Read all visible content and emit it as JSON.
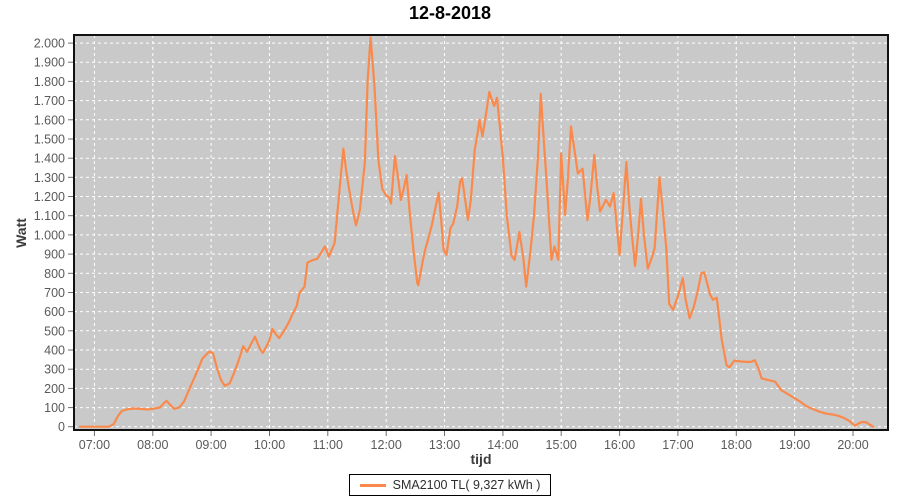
{
  "chart": {
    "background": "#ffffff",
    "accent_color": "#fa8a4c"
  },
  "legend": {
    "label": "SMA2100 TL( 9,327 kWh )"
  },
  "chart_data": {
    "type": "line",
    "title": "12-8-2018",
    "xlabel": "tijd",
    "ylabel": "Watt",
    "legend_position": "bottom",
    "grid": true,
    "plot_bg": "#c9c9c9",
    "grid_color": "#ffffff",
    "tick_label_color": "#5a5a5a",
    "plot_border_color": "#111111",
    "x_tick_labels": [
      "07:00",
      "08:00",
      "09:00",
      "10:00",
      "11:00",
      "12:00",
      "13:00",
      "14:00",
      "15:00",
      "16:00",
      "17:00",
      "18:00",
      "19:00",
      "20:00"
    ],
    "y_tick_labels": [
      "0",
      "100",
      "200",
      "300",
      "400",
      "500",
      "600",
      "700",
      "800",
      "900",
      "1.000",
      "1.100",
      "1.200",
      "1.300",
      "1.400",
      "1.500",
      "1.600",
      "1.700",
      "1.800",
      "1.900",
      "2.000"
    ],
    "y_tick_step": 100,
    "ylim": [
      -17,
      2042
    ],
    "x_domain_minutes": [
      399,
      1236
    ],
    "series": [
      {
        "name": "SMA2100 TL( 9,327 kWh )",
        "color": "#fa8a4c",
        "points": [
          [
            "06:45",
            0
          ],
          [
            "06:52",
            0
          ],
          [
            "07:00",
            0
          ],
          [
            "07:08",
            0
          ],
          [
            "07:15",
            0
          ],
          [
            "07:20",
            15
          ],
          [
            "07:24",
            55
          ],
          [
            "07:28",
            82
          ],
          [
            "07:33",
            90
          ],
          [
            "07:40",
            95
          ],
          [
            "07:48",
            93
          ],
          [
            "07:55",
            90
          ],
          [
            "08:02",
            95
          ],
          [
            "08:07",
            100
          ],
          [
            "08:14",
            135
          ],
          [
            "08:19",
            108
          ],
          [
            "08:22",
            93
          ],
          [
            "08:27",
            100
          ],
          [
            "08:32",
            130
          ],
          [
            "08:37",
            190
          ],
          [
            "08:44",
            270
          ],
          [
            "08:51",
            355
          ],
          [
            "08:58",
            392
          ],
          [
            "09:02",
            382
          ],
          [
            "09:06",
            305
          ],
          [
            "09:10",
            245
          ],
          [
            "09:14",
            213
          ],
          [
            "09:19",
            226
          ],
          [
            "09:24",
            286
          ],
          [
            "09:29",
            355
          ],
          [
            "09:33",
            420
          ],
          [
            "09:37",
            390
          ],
          [
            "09:42",
            440
          ],
          [
            "09:45",
            470
          ],
          [
            "09:50",
            408
          ],
          [
            "09:53",
            385
          ],
          [
            "09:57",
            420
          ],
          [
            "10:00",
            452
          ],
          [
            "10:03",
            510
          ],
          [
            "10:07",
            480
          ],
          [
            "10:10",
            462
          ],
          [
            "10:15",
            500
          ],
          [
            "10:20",
            545
          ],
          [
            "10:24",
            590
          ],
          [
            "10:28",
            630
          ],
          [
            "10:31",
            700
          ],
          [
            "10:36",
            730
          ],
          [
            "10:39",
            855
          ],
          [
            "10:44",
            868
          ],
          [
            "10:49",
            875
          ],
          [
            "10:53",
            905
          ],
          [
            "10:57",
            940
          ],
          [
            "11:01",
            887
          ],
          [
            "11:07",
            957
          ],
          [
            "11:12",
            1235
          ],
          [
            "11:16",
            1450
          ],
          [
            "11:19",
            1330
          ],
          [
            "11:22",
            1235
          ],
          [
            "11:26",
            1120
          ],
          [
            "11:29",
            1050
          ],
          [
            "11:33",
            1131
          ],
          [
            "11:38",
            1374
          ],
          [
            "11:41",
            1810
          ],
          [
            "11:44",
            2030
          ],
          [
            "11:48",
            1773
          ],
          [
            "11:52",
            1390
          ],
          [
            "11:56",
            1240
          ],
          [
            "12:00",
            1205
          ],
          [
            "12:03",
            1195
          ],
          [
            "12:05",
            1163
          ],
          [
            "12:09",
            1411
          ],
          [
            "12:13",
            1269
          ],
          [
            "12:15",
            1182
          ],
          [
            "12:18",
            1240
          ],
          [
            "12:21",
            1313
          ],
          [
            "12:24",
            1130
          ],
          [
            "12:28",
            922
          ],
          [
            "12:32",
            749
          ],
          [
            "12:33",
            738
          ],
          [
            "12:37",
            850
          ],
          [
            "12:40",
            922
          ],
          [
            "12:43",
            974
          ],
          [
            "12:47",
            1052
          ],
          [
            "12:51",
            1150
          ],
          [
            "12:54",
            1220
          ],
          [
            "12:57",
            1052
          ],
          [
            "12:59",
            922
          ],
          [
            "13:02",
            896
          ],
          [
            "13:06",
            1035
          ],
          [
            "13:09",
            1060
          ],
          [
            "13:13",
            1150
          ],
          [
            "13:16",
            1278
          ],
          [
            "13:18",
            1295
          ],
          [
            "13:21",
            1191
          ],
          [
            "13:24",
            1078
          ],
          [
            "13:27",
            1180
          ],
          [
            "13:31",
            1443
          ],
          [
            "13:34",
            1530
          ],
          [
            "13:36",
            1600
          ],
          [
            "13:39",
            1513
          ],
          [
            "13:43",
            1640
          ],
          [
            "13:46",
            1745
          ],
          [
            "13:49",
            1700
          ],
          [
            "13:51",
            1672
          ],
          [
            "13:54",
            1715
          ],
          [
            "13:57",
            1560
          ],
          [
            "14:00",
            1400
          ],
          [
            "14:04",
            1100
          ],
          [
            "14:09",
            890
          ],
          [
            "14:12",
            870
          ],
          [
            "14:17",
            1015
          ],
          [
            "14:21",
            880
          ],
          [
            "14:24",
            730
          ],
          [
            "14:28",
            900
          ],
          [
            "14:32",
            1100
          ],
          [
            "14:36",
            1400
          ],
          [
            "14:39",
            1735
          ],
          [
            "14:42",
            1500
          ],
          [
            "14:46",
            1200
          ],
          [
            "14:50",
            870
          ],
          [
            "14:53",
            940
          ],
          [
            "14:57",
            870
          ],
          [
            "15:00",
            1425
          ],
          [
            "15:04",
            1105
          ],
          [
            "15:07",
            1300
          ],
          [
            "15:10",
            1565
          ],
          [
            "15:14",
            1430
          ],
          [
            "15:17",
            1320
          ],
          [
            "15:22",
            1345
          ],
          [
            "15:27",
            1077
          ],
          [
            "15:30",
            1200
          ],
          [
            "15:34",
            1417
          ],
          [
            "15:37",
            1250
          ],
          [
            "15:40",
            1122
          ],
          [
            "15:46",
            1183
          ],
          [
            "15:50",
            1148
          ],
          [
            "15:54",
            1218
          ],
          [
            "15:57",
            1050
          ],
          [
            "16:00",
            895
          ],
          [
            "16:03",
            1100
          ],
          [
            "16:07",
            1380
          ],
          [
            "16:10",
            1150
          ],
          [
            "16:13",
            985
          ],
          [
            "16:16",
            838
          ],
          [
            "16:19",
            1000
          ],
          [
            "16:22",
            1188
          ],
          [
            "16:25",
            1000
          ],
          [
            "16:29",
            824
          ],
          [
            "16:33",
            880
          ],
          [
            "16:36",
            930
          ],
          [
            "16:41",
            1300
          ],
          [
            "16:44",
            1150
          ],
          [
            "16:48",
            930
          ],
          [
            "16:51",
            640
          ],
          [
            "16:55",
            610
          ],
          [
            "17:00",
            680
          ],
          [
            "17:05",
            775
          ],
          [
            "17:08",
            660
          ],
          [
            "17:12",
            566
          ],
          [
            "17:16",
            620
          ],
          [
            "17:20",
            700
          ],
          [
            "17:24",
            800
          ],
          [
            "17:27",
            805
          ],
          [
            "17:30",
            750
          ],
          [
            "17:33",
            690
          ],
          [
            "17:36",
            662
          ],
          [
            "17:40",
            672
          ],
          [
            "17:45",
            455
          ],
          [
            "17:50",
            320
          ],
          [
            "17:53",
            310
          ],
          [
            "17:58",
            345
          ],
          [
            "18:05",
            340
          ],
          [
            "18:10",
            338
          ],
          [
            "18:15",
            338
          ],
          [
            "18:19",
            347
          ],
          [
            "18:23",
            300
          ],
          [
            "18:26",
            252
          ],
          [
            "18:33",
            243
          ],
          [
            "18:40",
            235
          ],
          [
            "18:46",
            192
          ],
          [
            "18:53",
            170
          ],
          [
            "19:00",
            149
          ],
          [
            "19:06",
            130
          ],
          [
            "19:10",
            114
          ],
          [
            "19:15",
            100
          ],
          [
            "19:21",
            88
          ],
          [
            "19:26",
            78
          ],
          [
            "19:31",
            70
          ],
          [
            "19:36",
            66
          ],
          [
            "19:41",
            62
          ],
          [
            "19:46",
            55
          ],
          [
            "19:51",
            45
          ],
          [
            "19:57",
            28
          ],
          [
            "20:02",
            5
          ],
          [
            "20:06",
            18
          ],
          [
            "20:10",
            25
          ],
          [
            "20:14",
            22
          ],
          [
            "20:18",
            8
          ],
          [
            "20:21",
            0
          ]
        ]
      }
    ]
  }
}
